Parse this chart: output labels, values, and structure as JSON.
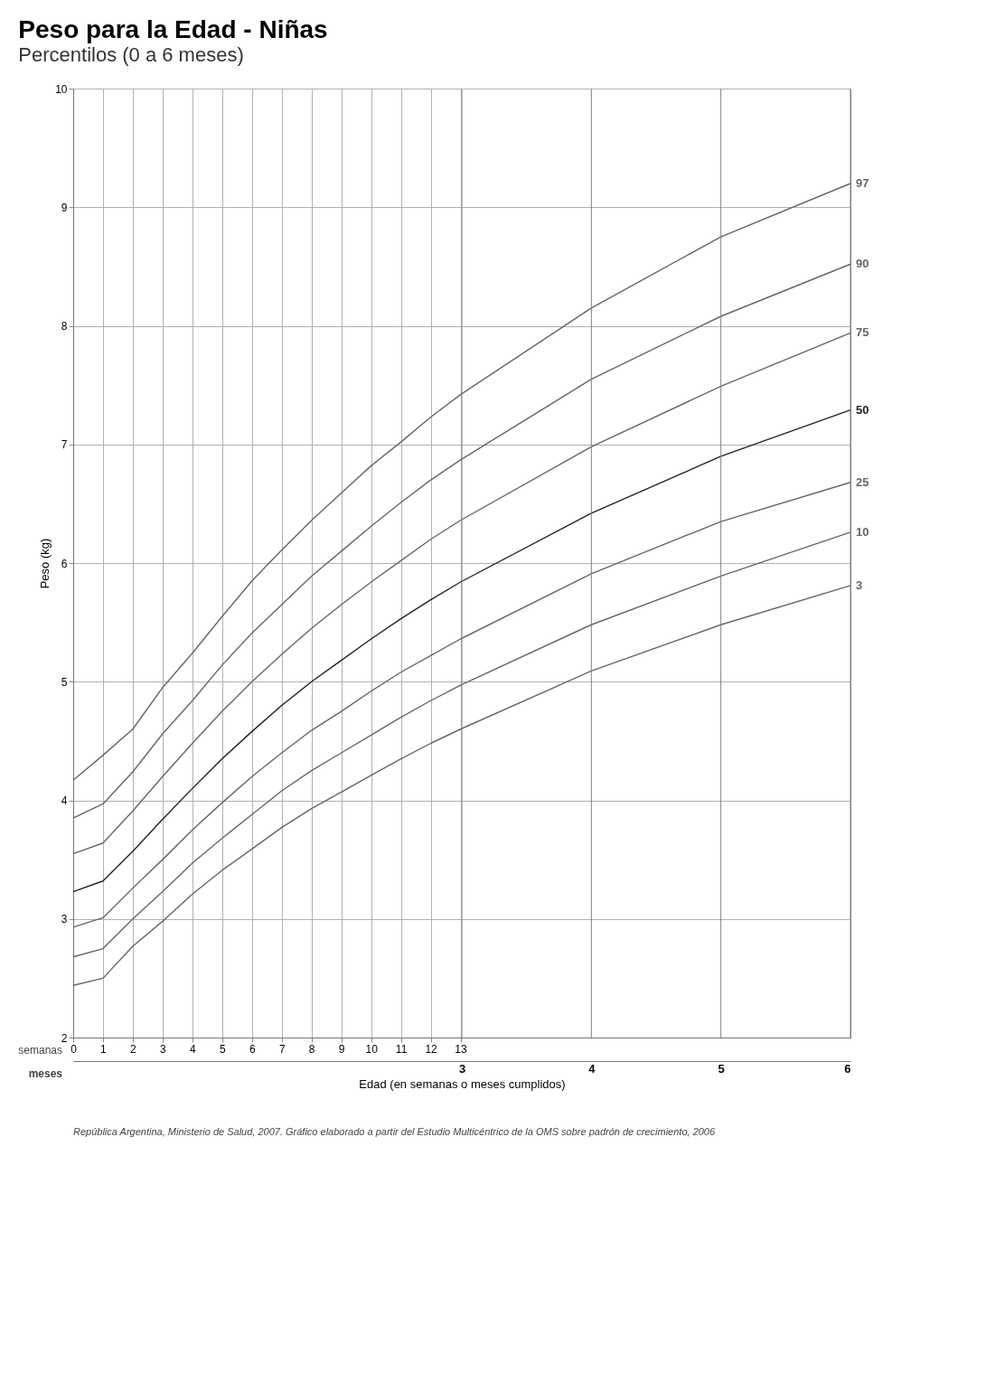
{
  "chart_data": {
    "type": "line",
    "title": "Peso para la Edad - Niñas",
    "subtitle": "Percentilos (0 a 6 meses)",
    "xlabel": "Edad (en semanas o meses cumplidos)",
    "ylabel": "Peso (kg)",
    "annotations": [
      "semanas",
      "meses",
      "República Argentina, Ministerio de Salud, 2007. Gráfico elaborado a partir del Estudio Multicéntrico de la OMS sobre padrón de crecimiento, 2006"
    ],
    "x": [
      0,
      1,
      2,
      3,
      4,
      5,
      6,
      7,
      8,
      9,
      10,
      11,
      12,
      13,
      17.39,
      21.74,
      26.09
    ],
    "xlim": [
      0,
      26.09
    ],
    "xticks": [
      0,
      1,
      2,
      3,
      4,
      5,
      6,
      7,
      8,
      9,
      10,
      11,
      12,
      13
    ],
    "x2lim": [
      0,
      6
    ],
    "x2ticks": [
      3,
      4,
      5,
      6
    ],
    "ylim": [
      2,
      10
    ],
    "yticks": [
      2,
      3,
      4,
      5,
      6,
      7,
      8,
      9,
      10
    ],
    "grid": true,
    "marker": "none",
    "line_style": "solid",
    "series": [
      {
        "name": "97",
        "color": "#666666",
        "values": [
          4.17,
          4.38,
          4.6,
          4.95,
          5.24,
          5.55,
          5.85,
          6.11,
          6.36,
          6.59,
          6.82,
          7.02,
          7.23,
          7.42,
          8.15,
          8.75,
          9.2
        ]
      },
      {
        "name": "90",
        "color": "#666666",
        "values": [
          3.85,
          3.97,
          4.24,
          4.56,
          4.84,
          5.14,
          5.41,
          5.65,
          5.89,
          6.1,
          6.31,
          6.51,
          6.7,
          6.87,
          7.55,
          8.08,
          8.52
        ]
      },
      {
        "name": "75",
        "color": "#666666",
        "values": [
          3.55,
          3.64,
          3.91,
          4.2,
          4.48,
          4.75,
          5.0,
          5.23,
          5.45,
          5.65,
          5.84,
          6.02,
          6.2,
          6.36,
          6.98,
          7.49,
          7.94
        ]
      },
      {
        "name": "50",
        "color": "#222222",
        "values": [
          3.23,
          3.32,
          3.57,
          3.84,
          4.1,
          4.35,
          4.58,
          4.8,
          5.0,
          5.18,
          5.36,
          5.53,
          5.69,
          5.84,
          6.42,
          6.9,
          7.29
        ]
      },
      {
        "name": "25",
        "color": "#666666",
        "values": [
          2.93,
          3.01,
          3.26,
          3.5,
          3.75,
          3.98,
          4.2,
          4.4,
          4.59,
          4.75,
          4.92,
          5.08,
          5.22,
          5.36,
          5.91,
          6.35,
          6.68
        ]
      },
      {
        "name": "10",
        "color": "#666666",
        "values": [
          2.68,
          2.75,
          3.0,
          3.23,
          3.47,
          3.68,
          3.88,
          4.08,
          4.25,
          4.4,
          4.55,
          4.7,
          4.84,
          4.97,
          5.48,
          5.89,
          6.26
        ]
      },
      {
        "name": "3",
        "color": "#666666",
        "values": [
          2.44,
          2.5,
          2.77,
          2.98,
          3.21,
          3.41,
          3.59,
          3.77,
          3.93,
          4.07,
          4.21,
          4.35,
          4.48,
          4.6,
          5.09,
          5.48,
          5.81
        ]
      }
    ]
  }
}
